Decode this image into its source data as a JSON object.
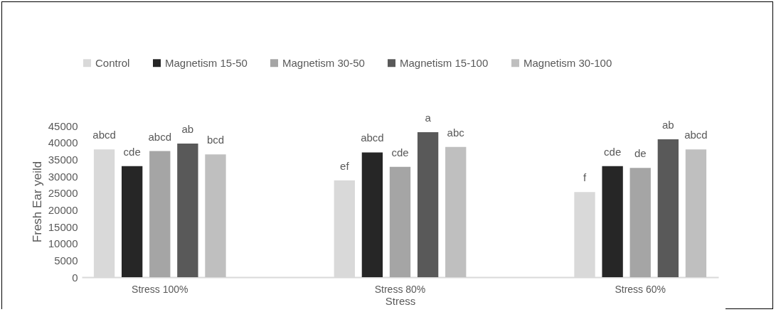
{
  "chart_data": {
    "type": "bar",
    "xlabel": "Stress",
    "ylabel": "Fresh Ear yeild",
    "categories": [
      "Stress 100%",
      "Stress 80%",
      "Stress 60%"
    ],
    "series": [
      {
        "name": "Control",
        "color": "#d9d9d9",
        "values": [
          38000,
          28800,
          25300
        ],
        "value_labels": [
          "abcd",
          "ef",
          "f"
        ]
      },
      {
        "name": "Magnetism 15-50",
        "color": "#262626",
        "values": [
          33000,
          37100,
          33000
        ],
        "value_labels": [
          "cde",
          "abcd",
          "cde"
        ]
      },
      {
        "name": "Magnetism 30-50",
        "color": "#a5a5a5",
        "values": [
          37500,
          32800,
          32500
        ],
        "value_labels": [
          "abcd",
          "cde",
          "de"
        ]
      },
      {
        "name": "Magnetism 15-100",
        "color": "#595959",
        "values": [
          39700,
          43100,
          41000
        ],
        "value_labels": [
          "ab",
          "a",
          "ab"
        ]
      },
      {
        "name": "Magnetism 30-100",
        "color": "#bfbfbf",
        "values": [
          36500,
          38700,
          38000
        ],
        "value_labels": [
          "bcd",
          "abc",
          "abcd"
        ]
      }
    ],
    "ylim": [
      0,
      45000
    ],
    "yticks": [
      0,
      5000,
      10000,
      15000,
      20000,
      25000,
      30000,
      35000,
      40000,
      45000
    ],
    "grid": false,
    "legend": "top"
  }
}
